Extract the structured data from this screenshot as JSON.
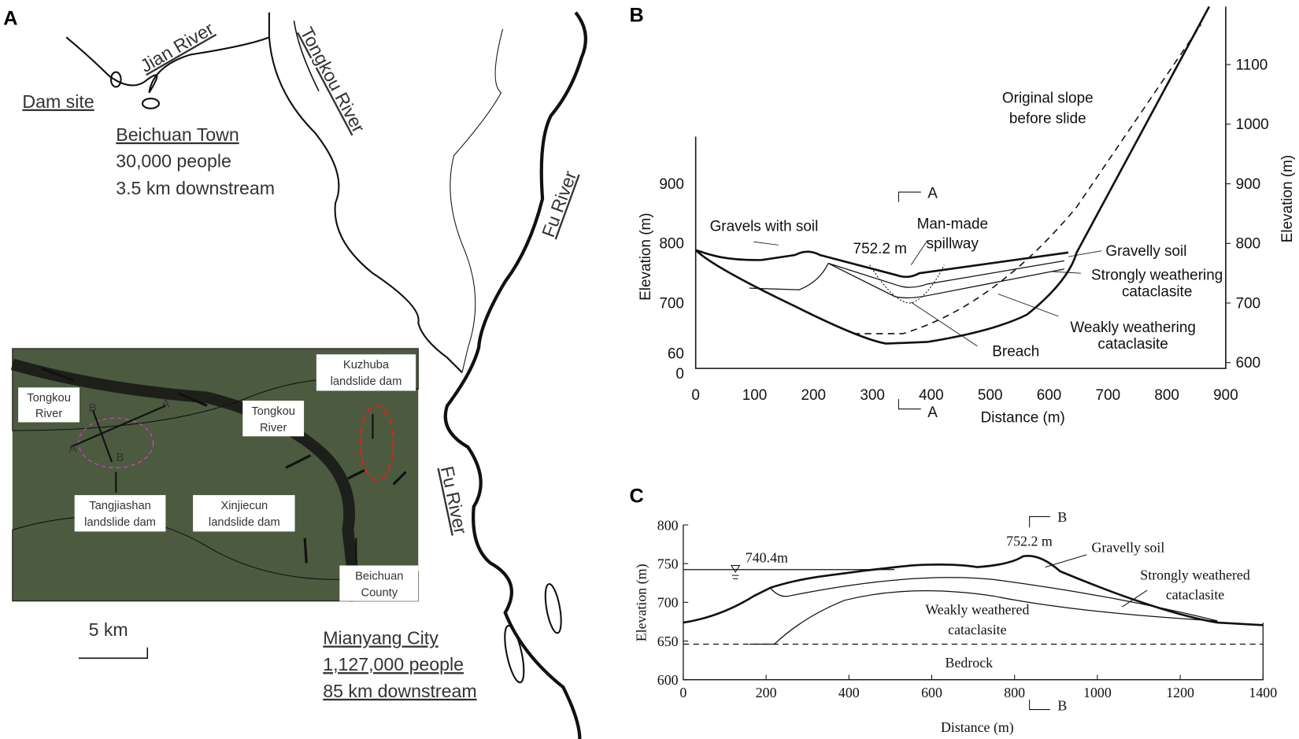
{
  "panel_a": {
    "label": "A",
    "map": {
      "dam_site": "Dam site",
      "jian_river": "Jian River",
      "tongkou_river": "Tongkou River",
      "beichuan_town": "Beichuan Town",
      "beichuan_people": "30,000 people",
      "beichuan_distance": "3.5 km downstream",
      "fu_river_upper": "Fu River",
      "fu_river_lower": "Fu River",
      "scale": "5 km",
      "mianyang_city": "Mianyang City",
      "mianyang_people": "1,127,000 people",
      "mianyang_distance": "85 km downstream"
    },
    "photo": {
      "labels": [
        [
          "Tongkou",
          "River"
        ],
        [
          "Tongkou",
          "River"
        ],
        [
          "Kuzhuba",
          "landslide dam"
        ],
        [
          "Tangjiashan",
          "landslide dam"
        ],
        [
          "Xinjiecun",
          "landslide dam"
        ],
        [
          "Beichuan",
          "County"
        ]
      ],
      "section_marks": [
        "B",
        "A",
        "A",
        "B"
      ]
    }
  },
  "panel_b": {
    "label": "B",
    "y_left_title": "Elevation (m)",
    "y_right_title": "Elevation (m)",
    "x_title": "Distance (m)",
    "y_left_ticks": [
      900,
      800,
      700,
      60,
      0
    ],
    "y_right_ticks": [
      1100,
      1000,
      900,
      800,
      700,
      600
    ],
    "x_ticks": [
      0,
      100,
      200,
      300,
      400,
      500,
      600,
      700,
      800,
      900
    ],
    "annotations": {
      "original_slope_1": "Original slope",
      "original_slope_2": "before slide",
      "gravels": "Gravels with soil",
      "crest": "752.2 m",
      "spillway_1": "Man-made",
      "spillway_2": "spillway",
      "gravelly_soil": "Gravelly soil",
      "strong_1": "Strongly weathering",
      "strong_2": "cataclasite",
      "weak_1": "Weakly weathering",
      "weak_2": "cataclasite",
      "breach": "Breach",
      "section_top": "A",
      "section_bottom": "A"
    }
  },
  "panel_c": {
    "label": "C",
    "y_title": "Elevation (m)",
    "x_title": "Distance (m)",
    "y_ticks": [
      800,
      750,
      700,
      650,
      600
    ],
    "x_ticks": [
      0,
      200,
      400,
      600,
      800,
      1000,
      1200,
      1400
    ],
    "annotations": {
      "water_level": "740.4m",
      "crest": "752.2 m",
      "gravelly_soil": "Gravelly soil",
      "strong_1": "Strongly weathered",
      "strong_2": "cataclasite",
      "weak_1": "Weakly weathered",
      "weak_2": "cataclasite",
      "bedrock": "Bedrock",
      "section_top": "B",
      "section_bottom": "B"
    }
  }
}
